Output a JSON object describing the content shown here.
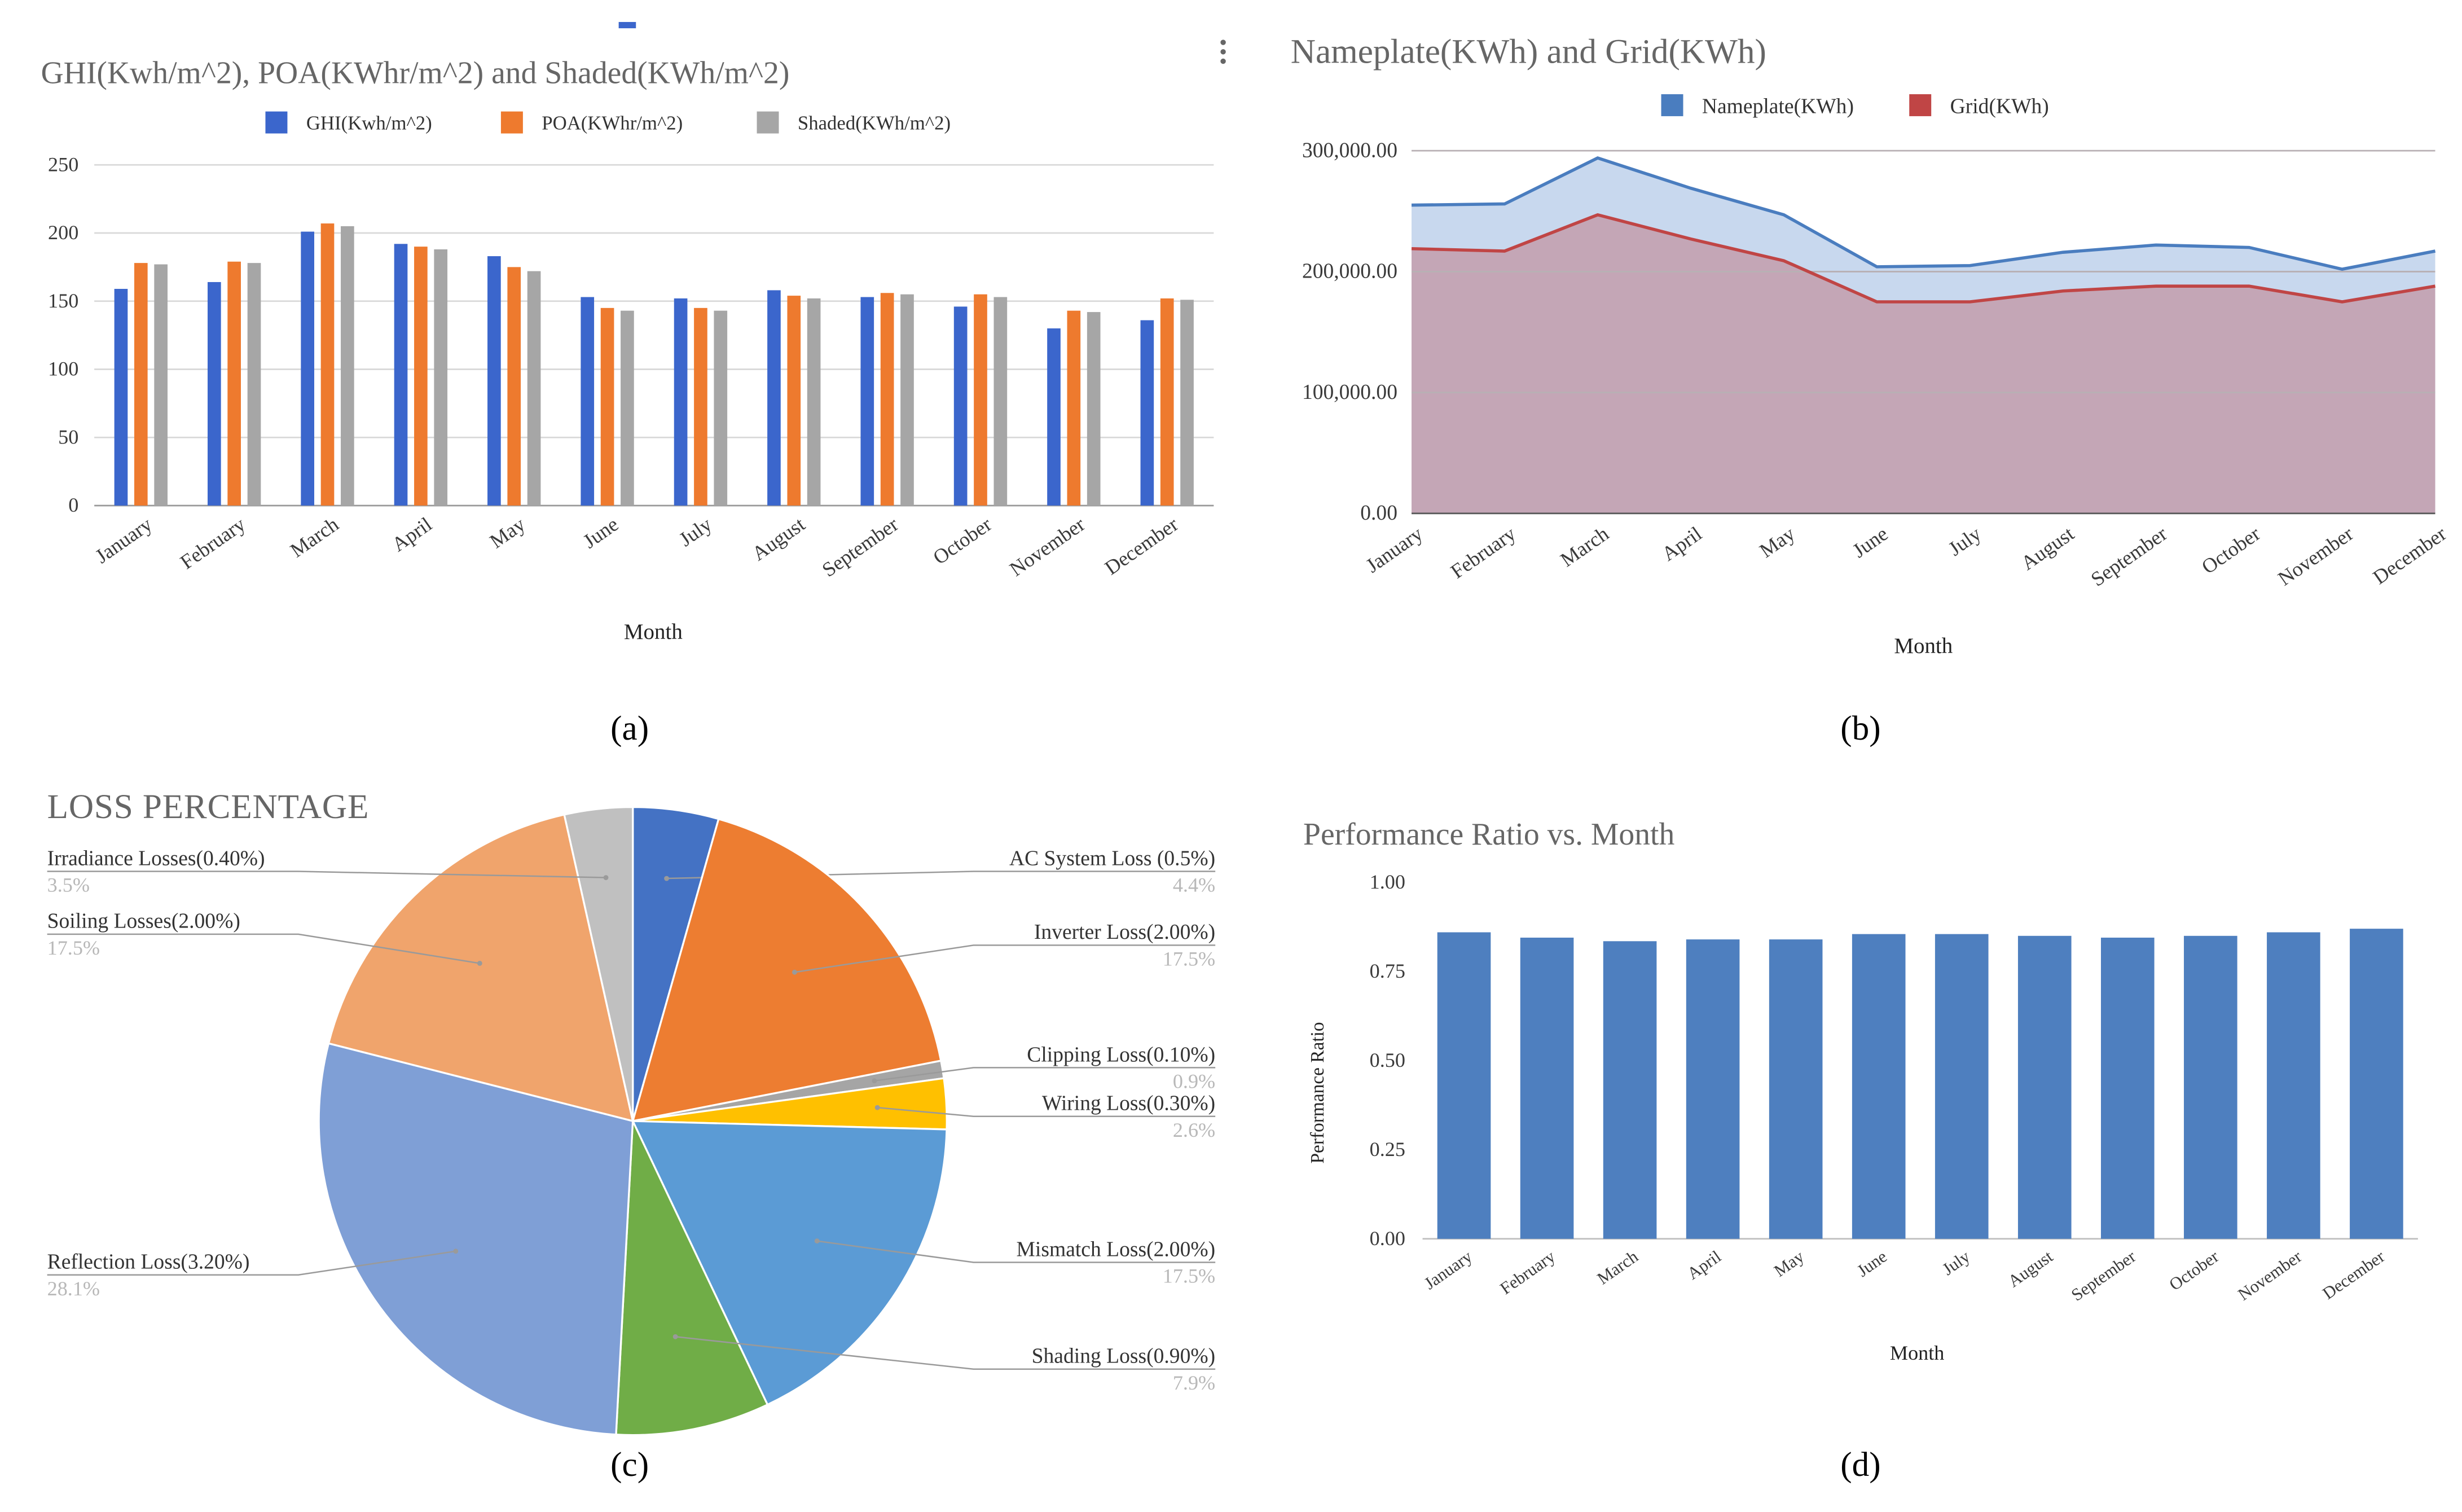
{
  "panels": {
    "a": {
      "caption": "(a)"
    },
    "b": {
      "caption": "(b)"
    },
    "c": {
      "caption": "(c)"
    },
    "d": {
      "caption": "(d)"
    }
  },
  "colors": {
    "ghi": "#3b66cc",
    "poa": "#ee7a2e",
    "shaded": "#a6a6a6",
    "nameplate": "#4a7dbf",
    "nameplate_fill": "#c8d8ee",
    "grid": "#c04545",
    "grid_fill": "#c4a6b6",
    "pr_bar": "#4e7fbf",
    "gridline": "#d9d9d9",
    "axis_text": "#3a3a3a",
    "title_text": "#666666"
  },
  "chart_data": [
    {
      "id": "a",
      "type": "bar",
      "title": "GHI(Kwh/m^2), POA(KWhr/m^2) and Shaded(KWh/m^2)",
      "xlabel": "Month",
      "ylabel": "",
      "ylim": [
        0,
        250
      ],
      "yticks": [
        "0",
        "50",
        "100",
        "150",
        "200",
        "250"
      ],
      "grid": true,
      "legend": "top",
      "categories": [
        "January",
        "February",
        "March",
        "April",
        "May",
        "June",
        "July",
        "August",
        "September",
        "October",
        "November",
        "December"
      ],
      "series": [
        {
          "name": "GHI(Kwh/m^2)",
          "color": "#3b66cc",
          "values": [
            159,
            164,
            201,
            192,
            183,
            153,
            152,
            158,
            153,
            146,
            130,
            136
          ]
        },
        {
          "name": "POA(KWhr/m^2)",
          "color": "#ee7a2e",
          "values": [
            178,
            179,
            207,
            190,
            175,
            145,
            145,
            154,
            156,
            155,
            143,
            152
          ]
        },
        {
          "name": "Shaded(KWh/m^2)",
          "color": "#a6a6a6",
          "values": [
            177,
            178,
            205,
            188,
            172,
            143,
            143,
            152,
            155,
            153,
            142,
            151
          ]
        }
      ]
    },
    {
      "id": "b",
      "type": "area",
      "title": "Nameplate(KWh) and Grid(KWh)",
      "xlabel": "Month",
      "ylabel": "",
      "ylim": [
        0,
        300000
      ],
      "yticks": [
        "0.00",
        "100,000.00",
        "200,000.00",
        "300,000.00"
      ],
      "grid": true,
      "legend": "top",
      "categories": [
        "January",
        "February",
        "March",
        "April",
        "May",
        "June",
        "July",
        "August",
        "September",
        "October",
        "November",
        "December"
      ],
      "series": [
        {
          "name": "Nameplate(KWh)",
          "color": "#4a7dbf",
          "values": [
            255000,
            256000,
            294000,
            269000,
            247000,
            204000,
            205000,
            216000,
            222000,
            220000,
            202000,
            217000
          ]
        },
        {
          "name": "Grid(KWh)",
          "color": "#c04545",
          "values": [
            219000,
            217000,
            247000,
            227000,
            209000,
            175000,
            175000,
            184000,
            188000,
            188000,
            175000,
            188000
          ]
        }
      ]
    },
    {
      "id": "c",
      "type": "pie",
      "title": "LOSS PERCENTAGE",
      "slices": [
        {
          "label": "AC System Loss (0.5%)",
          "pct": "4.4%",
          "value": 4.4,
          "color": "#4472c4",
          "side": "right"
        },
        {
          "label": "Inverter Loss(2.00%)",
          "pct": "17.5%",
          "value": 17.5,
          "color": "#ed7d31",
          "side": "right"
        },
        {
          "label": "Clipping Loss(0.10%)",
          "pct": "0.9%",
          "value": 0.9,
          "color": "#a5a5a5",
          "side": "right"
        },
        {
          "label": "Wiring Loss(0.30%)",
          "pct": "2.6%",
          "value": 2.6,
          "color": "#ffc000",
          "side": "right"
        },
        {
          "label": "Mismatch Loss(2.00%)",
          "pct": "17.5%",
          "value": 17.5,
          "color": "#5b9bd5",
          "side": "right"
        },
        {
          "label": "Shading Loss(0.90%)",
          "pct": "7.9%",
          "value": 7.9,
          "color": "#70ad47",
          "side": "right"
        },
        {
          "label": "Reflection Loss(3.20%)",
          "pct": "28.1%",
          "value": 28.1,
          "color": "#7f9fd6",
          "side": "left"
        },
        {
          "label": "Soiling Losses(2.00%)",
          "pct": "17.5%",
          "value": 17.5,
          "color": "#f0a46c",
          "side": "left"
        },
        {
          "label": "Irradiance Losses(0.40%)",
          "pct": "3.5%",
          "value": 3.5,
          "color": "#c0c0c0",
          "side": "left"
        }
      ]
    },
    {
      "id": "d",
      "type": "bar",
      "title": "Performance Ratio vs. Month",
      "xlabel": "Month",
      "ylabel": "Performance Ratio",
      "ylim": [
        0,
        1
      ],
      "yticks": [
        "0.00",
        "0.25",
        "0.50",
        "0.75",
        "1.00"
      ],
      "grid": false,
      "categories": [
        "January",
        "February",
        "March",
        "April",
        "May",
        "June",
        "July",
        "August",
        "September",
        "October",
        "November",
        "December"
      ],
      "series": [
        {
          "name": "",
          "color": "#4e7fbf",
          "values": [
            0.86,
            0.845,
            0.835,
            0.84,
            0.84,
            0.855,
            0.855,
            0.85,
            0.845,
            0.85,
            0.86,
            0.87
          ]
        }
      ]
    }
  ]
}
